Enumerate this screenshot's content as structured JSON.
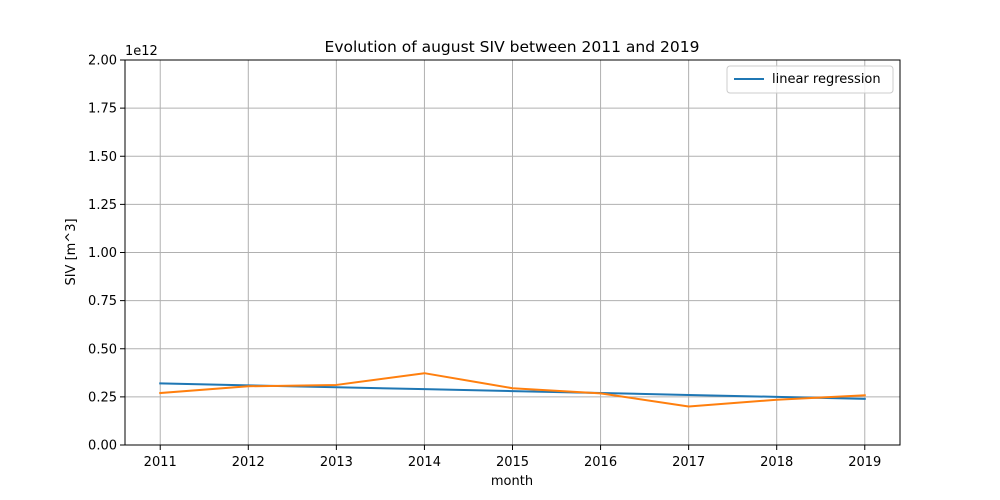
{
  "chart_data": {
    "type": "line",
    "title": "Evolution of august SIV between 2011 and 2019",
    "xlabel": "month",
    "ylabel": "SIV [m^3]",
    "y_offset_label": "1e12",
    "x": [
      2011,
      2012,
      2013,
      2014,
      2015,
      2016,
      2017,
      2018,
      2019
    ],
    "x_ticks": [
      "2011",
      "2012",
      "2013",
      "2014",
      "2015",
      "2016",
      "2017",
      "2018",
      "2019"
    ],
    "y_ticks": [
      "0.00",
      "0.25",
      "0.50",
      "0.75",
      "1.00",
      "1.25",
      "1.50",
      "1.75",
      "2.00"
    ],
    "ylim": [
      0,
      2000000000000.0
    ],
    "grid": true,
    "legend_placement": "top-right",
    "series": [
      {
        "name": "linear regression",
        "color": "#1f77b4",
        "values": [
          320000000000.0,
          310000000000.0,
          300000000000.0,
          290000000000.0,
          280000000000.0,
          270000000000.0,
          260000000000.0,
          250000000000.0,
          240000000000.0
        ]
      },
      {
        "color": "#ff7f0e",
        "values": [
          270000000000.0,
          305000000000.0,
          312000000000.0,
          373000000000.0,
          295000000000.0,
          268000000000.0,
          200000000000.0,
          235000000000.0,
          258000000000.0
        ]
      }
    ]
  }
}
